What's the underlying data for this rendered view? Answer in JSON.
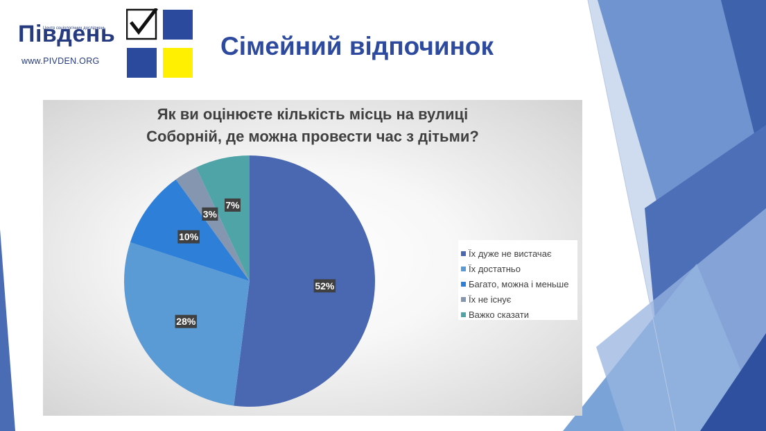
{
  "header": {
    "logo_text": "Південь",
    "logo_subtitle": "Центр соціологічних досліджень",
    "logo_url": "www.PIVDEN.ORG",
    "title": "Сімейний відпочинок"
  },
  "colors": {
    "dark_blue": "#4a68b1",
    "light_blue": "#5b9bd5",
    "bright_blue": "#2e7fd8",
    "gray": "#8496b0",
    "teal": "#4fa4a8",
    "logo_square_blue": "#2b4a9d",
    "logo_square_yellow": "#ffef00",
    "title_blue": "#2e4a9e"
  },
  "chart_data": {
    "type": "pie",
    "title": "Як ви оцінюєте кількість місць на вулиці Соборній, де можна провести час з дітьми?",
    "title_lines": [
      "Як ви оцінюєте кількість місць на вулиці",
      "Соборній, де можна провести час з дітьми?"
    ],
    "legend_position": "right",
    "categories": [
      "Їх дуже не вистачає",
      "Їх достатньо",
      "Багато, можна і меньше",
      "Їх не існує",
      "Важко сказати"
    ],
    "values": [
      52,
      28,
      10,
      3,
      7
    ],
    "labels": [
      "52%",
      "28%",
      "10%",
      "3%",
      "7%"
    ],
    "colors": [
      "#4a68b1",
      "#5b9bd5",
      "#2e7fd8",
      "#8496b0",
      "#4fa4a8"
    ]
  }
}
